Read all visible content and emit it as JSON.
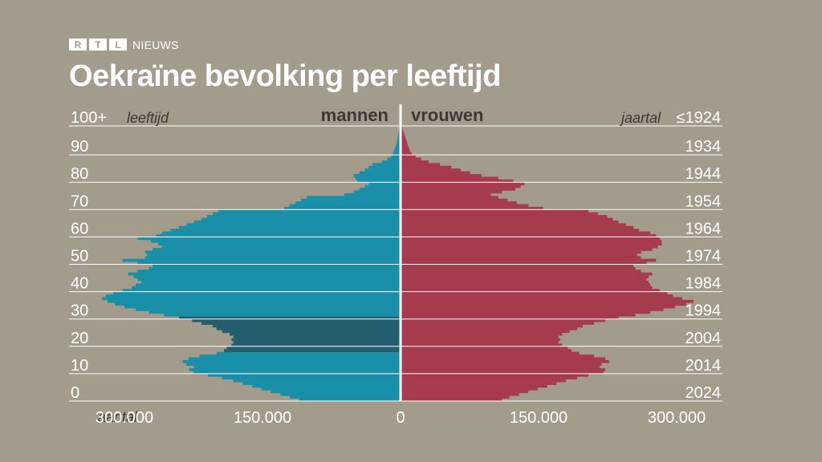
{
  "brand": {
    "letters": [
      "R",
      "T",
      "L"
    ],
    "suffix": "NIEUWS"
  },
  "title": "Oekraïne bevolking per leeftijd",
  "chart_data": {
    "type": "bar",
    "orientation": "horizontal-population-pyramid",
    "title": "Oekraïne bevolking per leeftijd",
    "left_header": "mannen",
    "right_header": "vrouwen",
    "age_axis_label": "leeftijd",
    "year_axis_label": "jaartal",
    "count_axis_label": "aantal",
    "age_ticks": [
      "100+",
      "90",
      "80",
      "70",
      "60",
      "50",
      "40",
      "30",
      "20",
      "10",
      "0"
    ],
    "year_ticks": [
      "≤1924",
      "1934",
      "1944",
      "1954",
      "1964",
      "1974",
      "1984",
      "1994",
      "2004",
      "2014",
      "2024"
    ],
    "x_ticks": [
      {
        "value": -300000,
        "label": "300.000"
      },
      {
        "value": -150000,
        "label": "150.000"
      },
      {
        "value": 0,
        "label": "0"
      },
      {
        "value": 150000,
        "label": "150.000"
      },
      {
        "value": 300000,
        "label": "300.000"
      }
    ],
    "xlim": [
      -375000,
      375000
    ],
    "highlight_ages_men": [
      18,
      30
    ],
    "colors": {
      "men": "#1a8fa8",
      "men_highlight": "#245e6e",
      "women": "#a63b4e",
      "grid": "#ffffff",
      "axis": "#ffffff",
      "header": "#3d3a35",
      "background": "#a39c8c"
    },
    "ages": [
      0,
      1,
      2,
      3,
      4,
      5,
      6,
      7,
      8,
      9,
      10,
      11,
      12,
      13,
      14,
      15,
      16,
      17,
      18,
      19,
      20,
      21,
      22,
      23,
      24,
      25,
      26,
      27,
      28,
      29,
      30,
      31,
      32,
      33,
      34,
      35,
      36,
      37,
      38,
      39,
      40,
      41,
      42,
      43,
      44,
      45,
      46,
      47,
      48,
      49,
      50,
      51,
      52,
      53,
      54,
      55,
      56,
      57,
      58,
      59,
      60,
      61,
      62,
      63,
      64,
      65,
      66,
      67,
      68,
      69,
      70,
      71,
      72,
      73,
      74,
      75,
      76,
      77,
      78,
      79,
      80,
      81,
      82,
      83,
      84,
      85,
      86,
      87,
      88,
      89,
      90,
      91,
      92,
      93,
      94,
      95,
      96,
      97,
      98,
      99,
      100
    ],
    "series": [
      {
        "name": "mannen",
        "values": [
          108000,
          118000,
          128000,
          138000,
          148000,
          158000,
          168000,
          178000,
          190000,
          205000,
          220000,
          225000,
          220000,
          228000,
          232000,
          226000,
          214000,
          196000,
          188000,
          185000,
          180000,
          178000,
          180000,
          178000,
          182000,
          190000,
          196000,
          200000,
          212000,
          222000,
          236000,
          252000,
          268000,
          282000,
          294000,
          304000,
          312000,
          318000,
          314000,
          306000,
          296000,
          286000,
          282000,
          276000,
          280000,
          284000,
          290000,
          280000,
          268000,
          264000,
          280000,
          296000,
          272000,
          270000,
          272000,
          264000,
          254000,
          258000,
          266000,
          280000,
          260000,
          254000,
          245000,
          236000,
          228000,
          220000,
          212000,
          206000,
          200000,
          194000,
          124000,
          118000,
          112000,
          106000,
          100000,
          60000,
          50000,
          44000,
          38000,
          34000,
          46000,
          48000,
          50000,
          44000,
          38000,
          34000,
          30000,
          20000,
          14000,
          10000,
          8000,
          7000,
          6000,
          5000,
          4000,
          3500,
          3000,
          2500,
          2000,
          1500,
          1200
        ]
      },
      {
        "name": "vrouwen",
        "values": [
          108000,
          116000,
          126000,
          136000,
          146000,
          156000,
          166000,
          176000,
          188000,
          200000,
          216000,
          218000,
          212000,
          214000,
          222000,
          218000,
          206000,
          190000,
          182000,
          178000,
          172000,
          168000,
          170000,
          168000,
          172000,
          180000,
          188000,
          194000,
          206000,
          218000,
          232000,
          250000,
          266000,
          280000,
          292000,
          304000,
          312000,
          300000,
          290000,
          284000,
          276000,
          268000,
          266000,
          264000,
          262000,
          264000,
          268000,
          256000,
          250000,
          248000,
          262000,
          272000,
          256000,
          252000,
          256000,
          268000,
          274000,
          278000,
          278000,
          276000,
          272000,
          266000,
          254000,
          248000,
          240000,
          232000,
          226000,
          220000,
          210000,
          200000,
          152000,
          136000,
          124000,
          114000,
          104000,
          96000,
          108000,
          122000,
          128000,
          132000,
          120000,
          104000,
          86000,
          74000,
          64000,
          54000,
          42000,
          30000,
          22000,
          16000,
          12000,
          10000,
          9000,
          8000,
          7000,
          6000,
          5000,
          4000,
          3000,
          2000,
          1500
        ]
      }
    ]
  }
}
